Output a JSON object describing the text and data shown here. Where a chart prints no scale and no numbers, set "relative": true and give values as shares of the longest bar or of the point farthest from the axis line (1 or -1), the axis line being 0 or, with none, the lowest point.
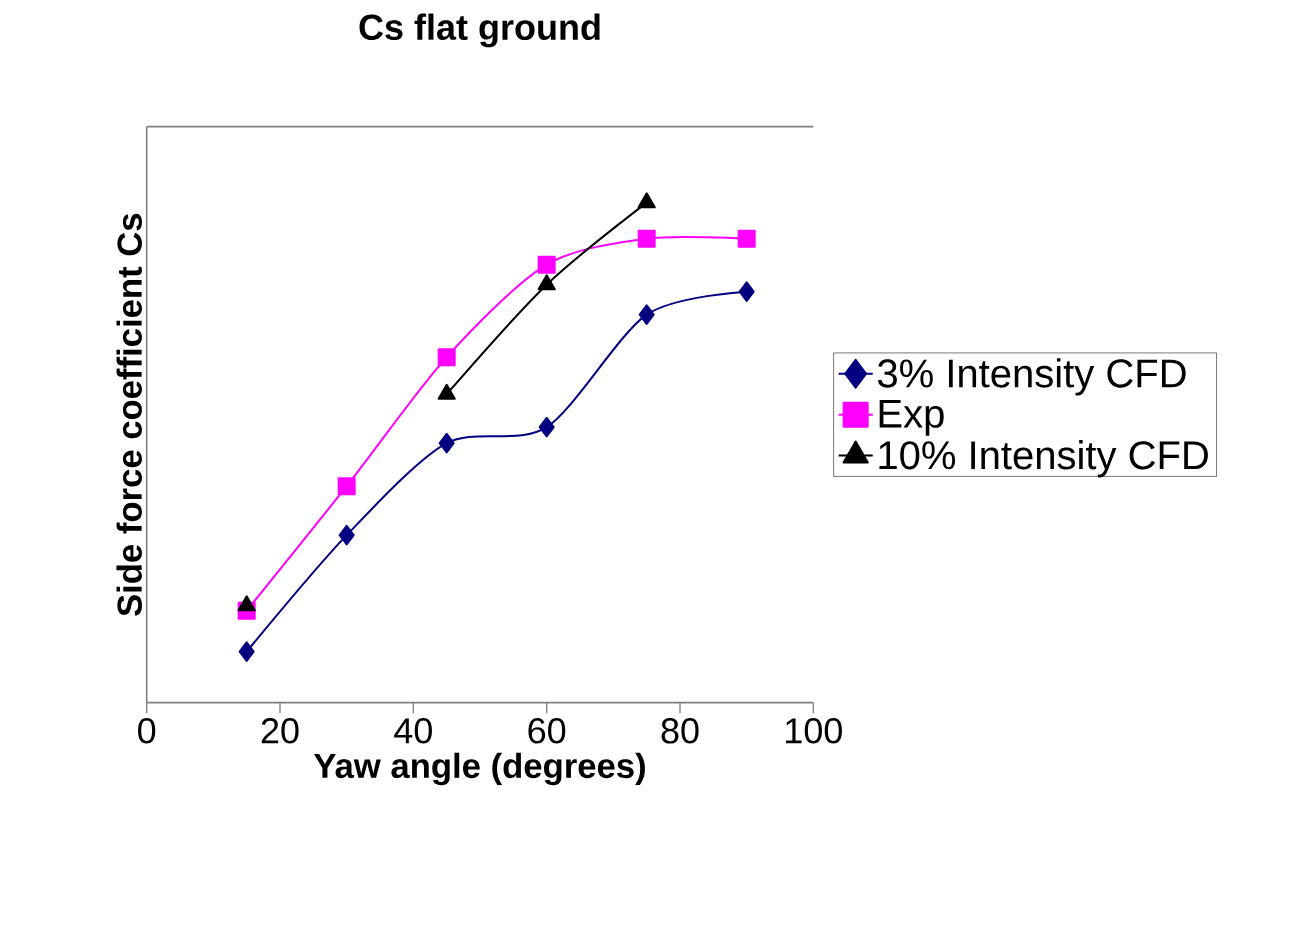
{
  "chart_data": {
    "type": "line",
    "title": "Cs flat ground",
    "xlabel": "Yaw angle (degrees)",
    "ylabel": "Side force coefficient  Cs",
    "relative": true,
    "x": [
      15,
      30,
      45,
      60,
      75,
      90
    ],
    "xlim": [
      0,
      100
    ],
    "xticks": [
      0,
      20,
      40,
      60,
      80,
      100
    ],
    "legend": "right",
    "grid": false,
    "line_style": "solid",
    "series": [
      {
        "name": "3% Intensity CFD",
        "color": "#000080",
        "marker": "diamond",
        "values": [
          0.102,
          0.335,
          0.519,
          0.551,
          0.776,
          0.822
        ]
      },
      {
        "name": "Exp",
        "color": "#ff00ff",
        "marker": "square",
        "values": [
          0.184,
          0.433,
          0.691,
          0.876,
          0.928,
          0.928
        ]
      },
      {
        "name": "10% Intensity CFD",
        "color": "#000000",
        "marker": "triangle",
        "values": [
          0.194,
          null,
          0.617,
          0.836,
          1.0,
          null
        ]
      }
    ]
  }
}
